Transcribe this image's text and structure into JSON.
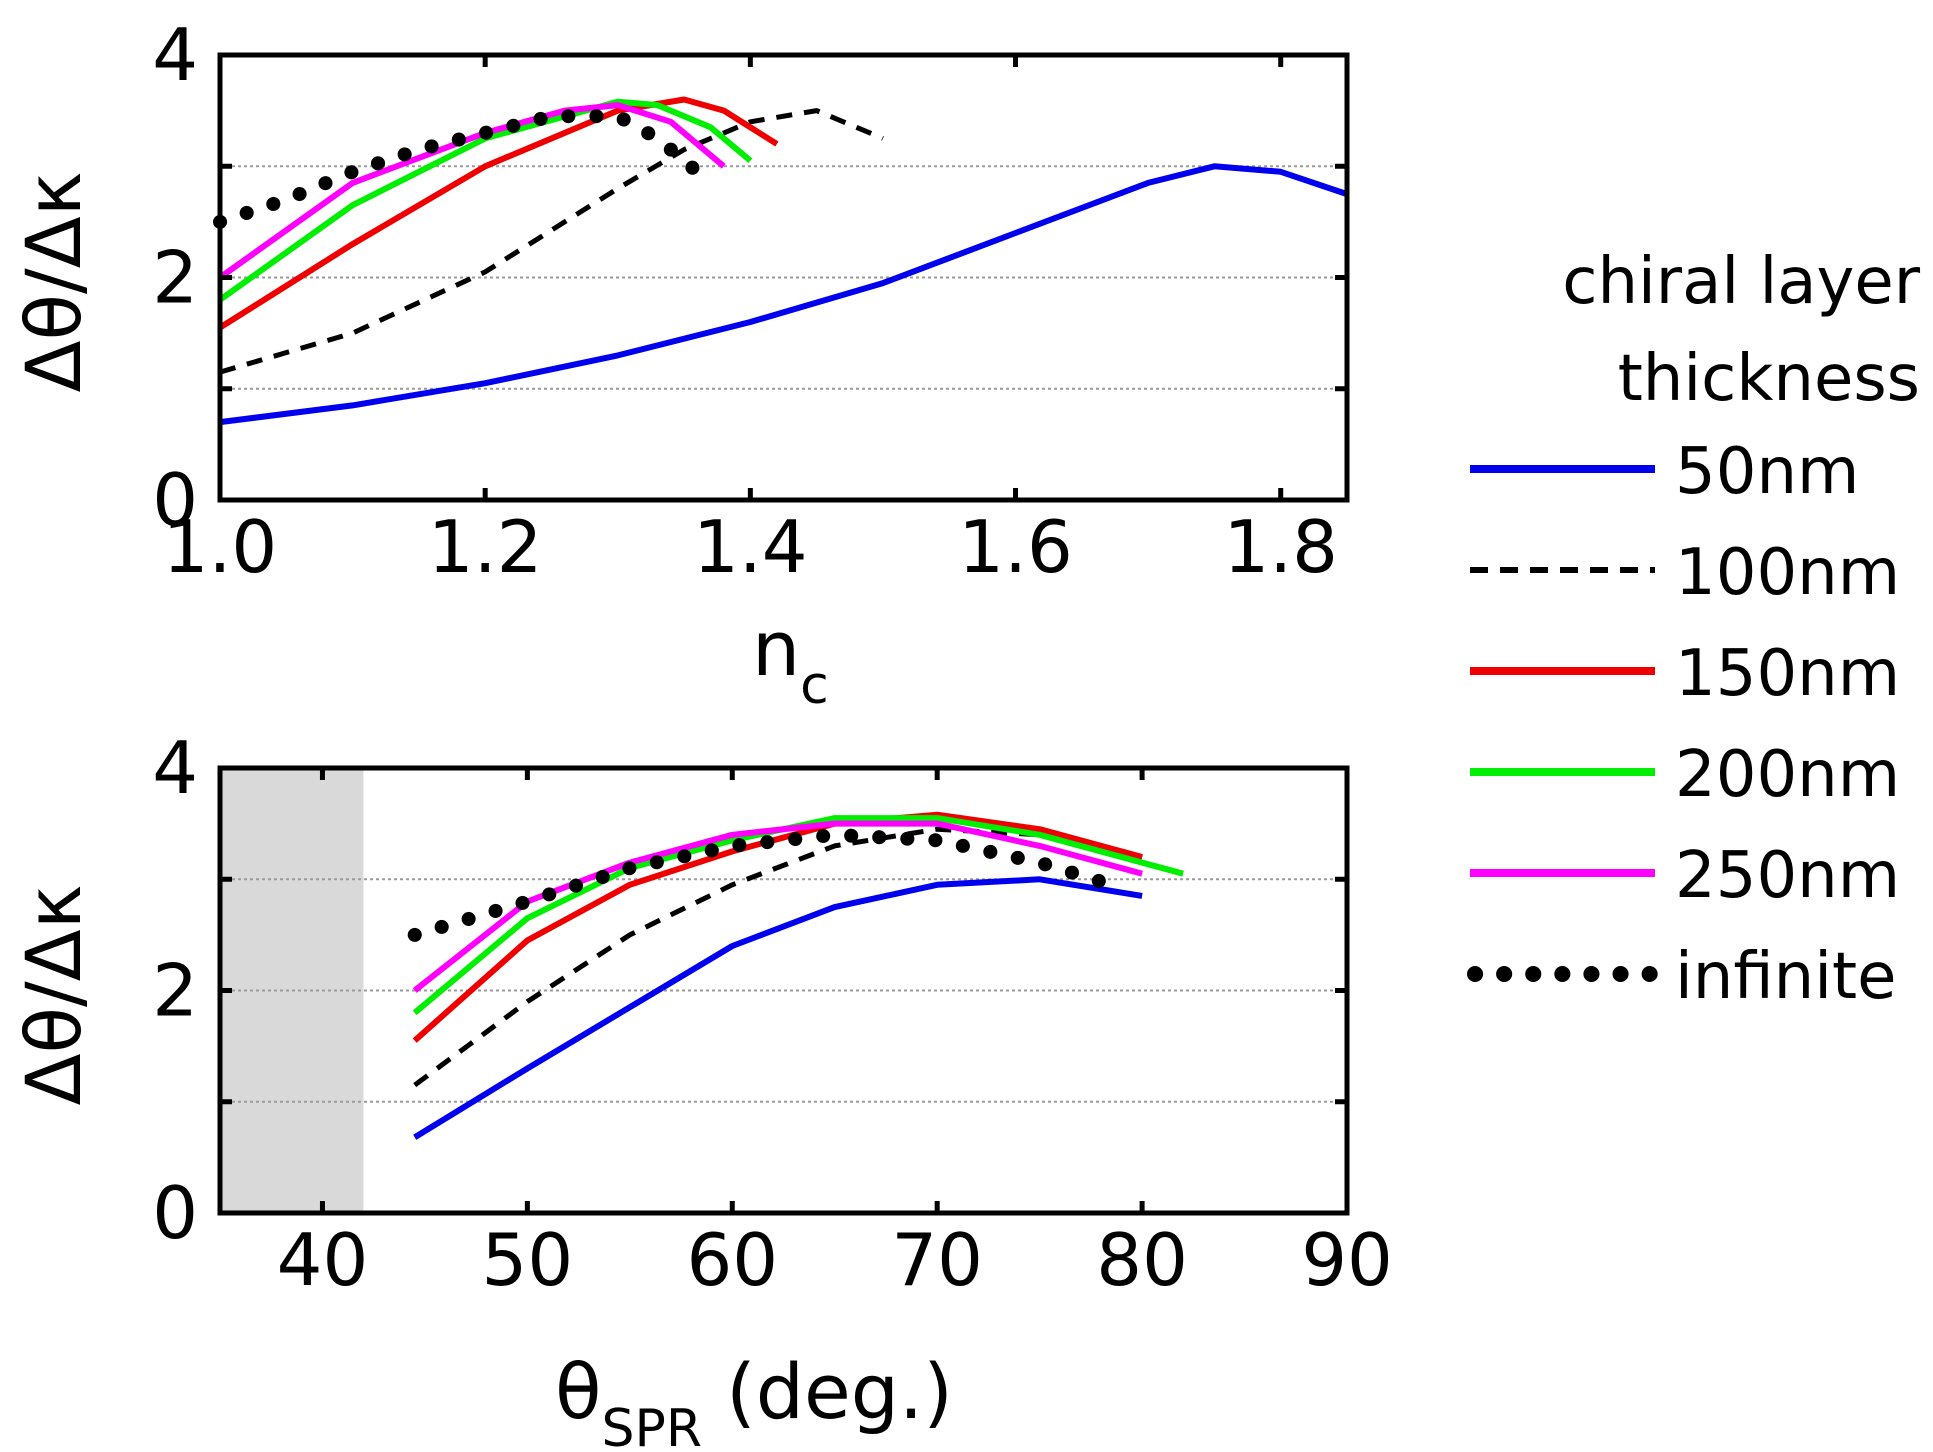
{
  "chart_data": [
    {
      "type": "line",
      "xlabel": "n",
      "xlabel_sub": "c",
      "ylabel": "Δθ/Δκ",
      "xlim": [
        1.0,
        1.85
      ],
      "ylim": [
        0,
        4
      ],
      "xticks": [
        1.0,
        1.2,
        1.4,
        1.6,
        1.8
      ],
      "xtick_labels": [
        "1.0",
        "1.2",
        "1.4",
        "1.6",
        "1.8"
      ],
      "yticks": [
        0,
        2,
        4
      ],
      "ytick_labels": [
        "0",
        "2",
        "4"
      ],
      "gridlines_y": [
        1,
        2,
        3
      ],
      "series": [
        {
          "name": "50nm",
          "x": [
            1.0,
            1.1,
            1.2,
            1.3,
            1.4,
            1.5,
            1.6,
            1.7,
            1.75,
            1.8,
            1.85
          ],
          "y": [
            0.7,
            0.85,
            1.05,
            1.3,
            1.6,
            1.95,
            2.4,
            2.85,
            3.0,
            2.95,
            2.75
          ]
        },
        {
          "name": "100nm",
          "x": [
            1.0,
            1.1,
            1.2,
            1.3,
            1.35,
            1.4,
            1.45,
            1.5
          ],
          "y": [
            1.15,
            1.5,
            2.05,
            2.8,
            3.15,
            3.4,
            3.5,
            3.25
          ]
        },
        {
          "name": "150nm",
          "x": [
            1.0,
            1.1,
            1.2,
            1.3,
            1.35,
            1.38,
            1.42
          ],
          "y": [
            1.55,
            2.3,
            3.0,
            3.5,
            3.6,
            3.5,
            3.2
          ]
        },
        {
          "name": "200nm",
          "x": [
            1.0,
            1.1,
            1.2,
            1.3,
            1.33,
            1.37,
            1.4
          ],
          "y": [
            1.8,
            2.65,
            3.25,
            3.58,
            3.55,
            3.35,
            3.05
          ]
        },
        {
          "name": "250nm",
          "x": [
            1.0,
            1.1,
            1.2,
            1.26,
            1.3,
            1.34,
            1.38
          ],
          "y": [
            2.0,
            2.85,
            3.3,
            3.5,
            3.55,
            3.4,
            3.0
          ]
        },
        {
          "name": "infinite",
          "x": [
            1.0,
            1.05,
            1.1,
            1.15,
            1.2,
            1.25,
            1.3,
            1.33,
            1.36
          ],
          "y": [
            2.5,
            2.7,
            2.95,
            3.15,
            3.3,
            3.45,
            3.45,
            3.25,
            2.95
          ]
        }
      ]
    },
    {
      "type": "line",
      "xlabel": "θ",
      "xlabel_sub": "SPR",
      "xlabel_suffix": " (deg.)",
      "ylabel": "Δθ/Δκ",
      "xlim": [
        35,
        90
      ],
      "ylim": [
        0,
        4
      ],
      "xticks": [
        40,
        50,
        60,
        70,
        80,
        90
      ],
      "xtick_labels": [
        "40",
        "50",
        "60",
        "70",
        "80",
        "90"
      ],
      "yticks": [
        0,
        2,
        4
      ],
      "ytick_labels": [
        "0",
        "2",
        "4"
      ],
      "gridlines_y": [
        1,
        2,
        3
      ],
      "shaded_x_range": [
        35,
        42
      ],
      "series": [
        {
          "name": "50nm",
          "x": [
            44.5,
            50,
            55,
            60,
            65,
            70,
            75,
            80
          ],
          "y": [
            0.68,
            1.3,
            1.85,
            2.4,
            2.75,
            2.95,
            3.0,
            2.85
          ]
        },
        {
          "name": "100nm",
          "x": [
            44.5,
            50,
            55,
            60,
            65,
            70,
            75,
            80
          ],
          "y": [
            1.15,
            1.9,
            2.5,
            2.95,
            3.3,
            3.45,
            3.4,
            3.2
          ]
        },
        {
          "name": "150nm",
          "x": [
            44.5,
            50,
            55,
            60,
            65,
            70,
            75,
            80
          ],
          "y": [
            1.55,
            2.45,
            2.95,
            3.25,
            3.5,
            3.58,
            3.45,
            3.2
          ]
        },
        {
          "name": "200nm",
          "x": [
            44.5,
            50,
            55,
            60,
            65,
            70,
            75,
            82
          ],
          "y": [
            1.8,
            2.65,
            3.1,
            3.35,
            3.55,
            3.55,
            3.4,
            3.05
          ]
        },
        {
          "name": "250nm",
          "x": [
            44.5,
            50,
            55,
            60,
            65,
            70,
            75,
            80
          ],
          "y": [
            2.0,
            2.8,
            3.15,
            3.4,
            3.5,
            3.5,
            3.3,
            3.05
          ]
        },
        {
          "name": "infinite",
          "x": [
            44.5,
            50,
            55,
            60,
            65,
            70,
            75,
            78.5
          ],
          "y": [
            2.5,
            2.8,
            3.1,
            3.3,
            3.4,
            3.35,
            3.15,
            2.95
          ]
        }
      ]
    }
  ],
  "legend": {
    "title_line1": "chiral layer",
    "title_line2": "thickness",
    "items": [
      {
        "name": "50nm",
        "style": "solid",
        "color": "#0000ee"
      },
      {
        "name": "100nm",
        "style": "dashed",
        "color": "#000000"
      },
      {
        "name": "150nm",
        "style": "solid",
        "color": "#ee0000"
      },
      {
        "name": "200nm",
        "style": "solid",
        "color": "#00ee00"
      },
      {
        "name": "250nm",
        "style": "solid",
        "color": "#ff00ff"
      },
      {
        "name": "infinite",
        "style": "dotted",
        "color": "#000000"
      }
    ]
  }
}
